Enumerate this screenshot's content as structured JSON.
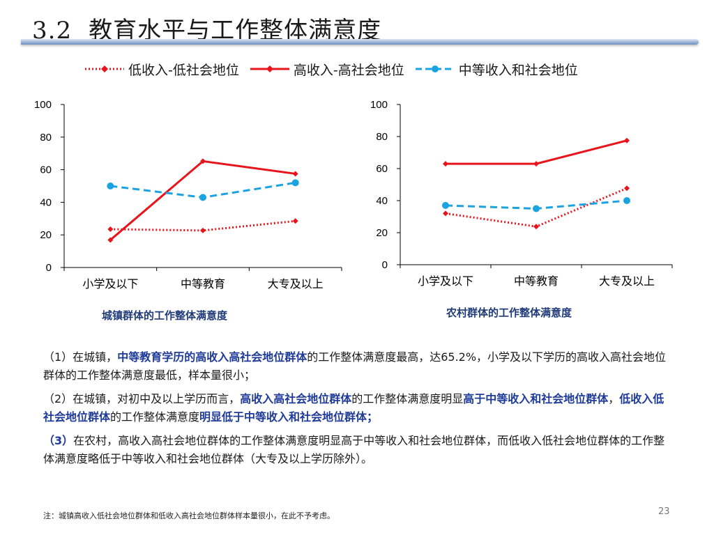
{
  "slide": {
    "section_number": "3.2",
    "title": "教育水平与工作整体满意度",
    "page_number": "23",
    "footnote": "注：城镇高收入低社会地位群体和低收入高社会地位群体样本量很小，在此不予考虑。"
  },
  "legend": [
    {
      "name": "低收入-低社会地位",
      "color": "#e8141b",
      "style": "dotted",
      "marker": "diamond"
    },
    {
      "name": "高收入-高社会地位",
      "color": "#e8141b",
      "style": "solid",
      "marker": "diamond"
    },
    {
      "name": "中等收入和社会地位",
      "color": "#1aa3e0",
      "style": "dashed",
      "marker": "circle"
    }
  ],
  "chart_data": [
    {
      "type": "line",
      "title": "城镇群体的工作整体满意度",
      "categories": [
        "小学及以下",
        "中等教育",
        "大专及以上"
      ],
      "yticks": [
        0,
        20,
        40,
        60,
        80,
        100
      ],
      "ylim": [
        0,
        100
      ],
      "grid": false,
      "series": [
        {
          "name": "低收入-低社会地位",
          "values": [
            23.5,
            22.7,
            28.5
          ]
        },
        {
          "name": "高收入-高社会地位",
          "values": [
            16.9,
            65.2,
            57.5
          ]
        },
        {
          "name": "中等收入和社会地位",
          "values": [
            50.0,
            43.0,
            52.0
          ]
        }
      ]
    },
    {
      "type": "line",
      "title": "农村群体的工作整体满意度",
      "categories": [
        "小学及以下",
        "中等教育",
        "大专及以上"
      ],
      "yticks": [
        0,
        20,
        40,
        60,
        80,
        100
      ],
      "ylim": [
        0,
        100
      ],
      "grid": false,
      "series": [
        {
          "name": "低收入-低社会地位",
          "values": [
            32.0,
            23.8,
            47.7
          ]
        },
        {
          "name": "高收入-高社会地位",
          "values": [
            63.0,
            63.0,
            77.5
          ]
        },
        {
          "name": "中等收入和社会地位",
          "values": [
            37.0,
            35.0,
            40.0
          ]
        }
      ]
    }
  ],
  "paragraphs": {
    "p1": {
      "prefix": "（1）在城镇，",
      "hl1": "中等教育学历的高收入高社会地位群体",
      "text1": "的工作整体满意度最高，达65.2%，小学及以下学历的高收入高社会地位群体的工作整体满意度最低，样本量很小；"
    },
    "p2": {
      "prefix": "（2）在城镇，对初中及以上学历而言，",
      "hl1": "高收入高社会地位群体",
      "text1": "的工作整体满意度明显",
      "hl2": "高于中等收入和社会地位群体",
      "text2": "，",
      "hl3": "低收入低社会地位群体",
      "text3": "的工作整体满意度",
      "hl4": "明显低于中等收入和社会地位群体；"
    },
    "p3": {
      "prefix": "（3）",
      "text1": "在农村，高收入高社会地位群体的工作整体满意度明显高于中等收入和社会地位群体，而低收入低社会地位群体的工作整体满意度略低于中等收入和社会地位群体（大专及以上学历除外）。"
    }
  }
}
